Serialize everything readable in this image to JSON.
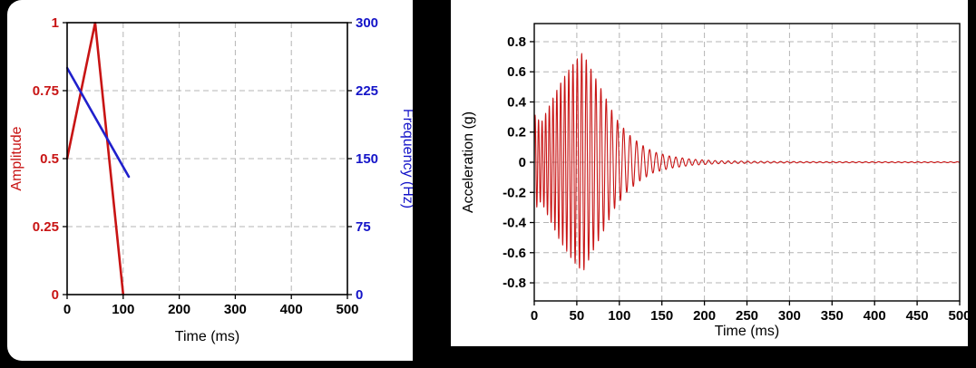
{
  "page": {
    "background": "#000000",
    "panel_background": "#ffffff"
  },
  "chart_data": [
    {
      "id": "chart-left",
      "name": "input-pulse-profiles",
      "type": "line",
      "title": "",
      "xlabel": "Time (ms)",
      "x_range": [
        0,
        500
      ],
      "x_ticks": [
        0,
        100,
        200,
        300,
        400,
        500
      ],
      "x_tick_labels": [
        "0",
        "100",
        "200",
        "300",
        "400",
        "500"
      ],
      "x_tick_color": "#000000",
      "grid": true,
      "grid_color": "#b4b4b4",
      "legend": "none",
      "axes": {
        "left": {
          "label": "Amplitude",
          "color": "#c81414",
          "range": [
            0,
            1
          ],
          "tick_values": [
            0,
            0.25,
            0.5,
            0.75,
            1
          ],
          "tick_labels": [
            "0",
            "0.25",
            "0.5",
            "0.75",
            "1"
          ]
        },
        "right": {
          "label": "Frequency (Hz)",
          "color": "#1414c8",
          "range": [
            0,
            300
          ],
          "tick_values": [
            0,
            75,
            150,
            225,
            300
          ],
          "tick_labels": [
            "0",
            "75",
            "150",
            "225",
            "300"
          ]
        }
      },
      "series": [
        {
          "name": "amplitude-envelope",
          "axis": "left",
          "color": "#c81414",
          "points": [
            [
              0,
              0.5
            ],
            [
              50,
              1
            ],
            [
              100,
              0
            ]
          ]
        },
        {
          "name": "frequency-sweep",
          "axis": "right",
          "color": "#2020cc",
          "points": [
            [
              0,
              250
            ],
            [
              110,
              130
            ]
          ]
        }
      ]
    },
    {
      "id": "chart-right",
      "name": "acceleration-response",
      "type": "line",
      "title": "",
      "xlabel": "Time (ms)",
      "x_range": [
        0,
        500
      ],
      "x_ticks": [
        0,
        50,
        100,
        150,
        200,
        250,
        300,
        350,
        400,
        450,
        500
      ],
      "x_tick_labels": [
        "0",
        "50",
        "100",
        "150",
        "200",
        "250",
        "300",
        "350",
        "400",
        "450",
        "500"
      ],
      "x_tick_color": "#000000",
      "grid": true,
      "grid_color": "#b4b4b4",
      "legend": "none",
      "axes": {
        "left": {
          "label": "Acceleration (g)",
          "color": "#000000",
          "range": [
            -0.92,
            0.92
          ],
          "tick_values": [
            -0.8,
            -0.6,
            -0.4,
            -0.2,
            0,
            0.2,
            0.4,
            0.6,
            0.8
          ],
          "tick_labels": [
            "-0.8",
            "-0.6",
            "-0.4",
            "-0.2",
            "0",
            "0.2",
            "0.4",
            "0.6",
            "0.8"
          ]
        }
      },
      "series": [
        {
          "name": "acceleration-waveform",
          "axis": "left",
          "color": "#c81414",
          "signal": {
            "kind": "swept-sine-burst",
            "freq_start_hz": 250,
            "freq_end_hz": 130,
            "sweep_end_ms": 110,
            "duration_ms": 500,
            "sample_step_ms": 0.2,
            "peak_g": 0.73,
            "envelope_g": [
              [
                0,
                0.32
              ],
              [
                8,
                0.26
              ],
              [
                18,
                0.38
              ],
              [
                30,
                0.52
              ],
              [
                45,
                0.65
              ],
              [
                57,
                0.73
              ],
              [
                70,
                0.58
              ],
              [
                82,
                0.45
              ],
              [
                95,
                0.3
              ],
              [
                110,
                0.19
              ],
              [
                125,
                0.12
              ],
              [
                140,
                0.07
              ],
              [
                160,
                0.04
              ],
              [
                185,
                0.02
              ],
              [
                215,
                0.01
              ],
              [
                260,
                0.006
              ],
              [
                320,
                0.004
              ],
              [
                500,
                0.003
              ]
            ]
          }
        }
      ]
    }
  ]
}
